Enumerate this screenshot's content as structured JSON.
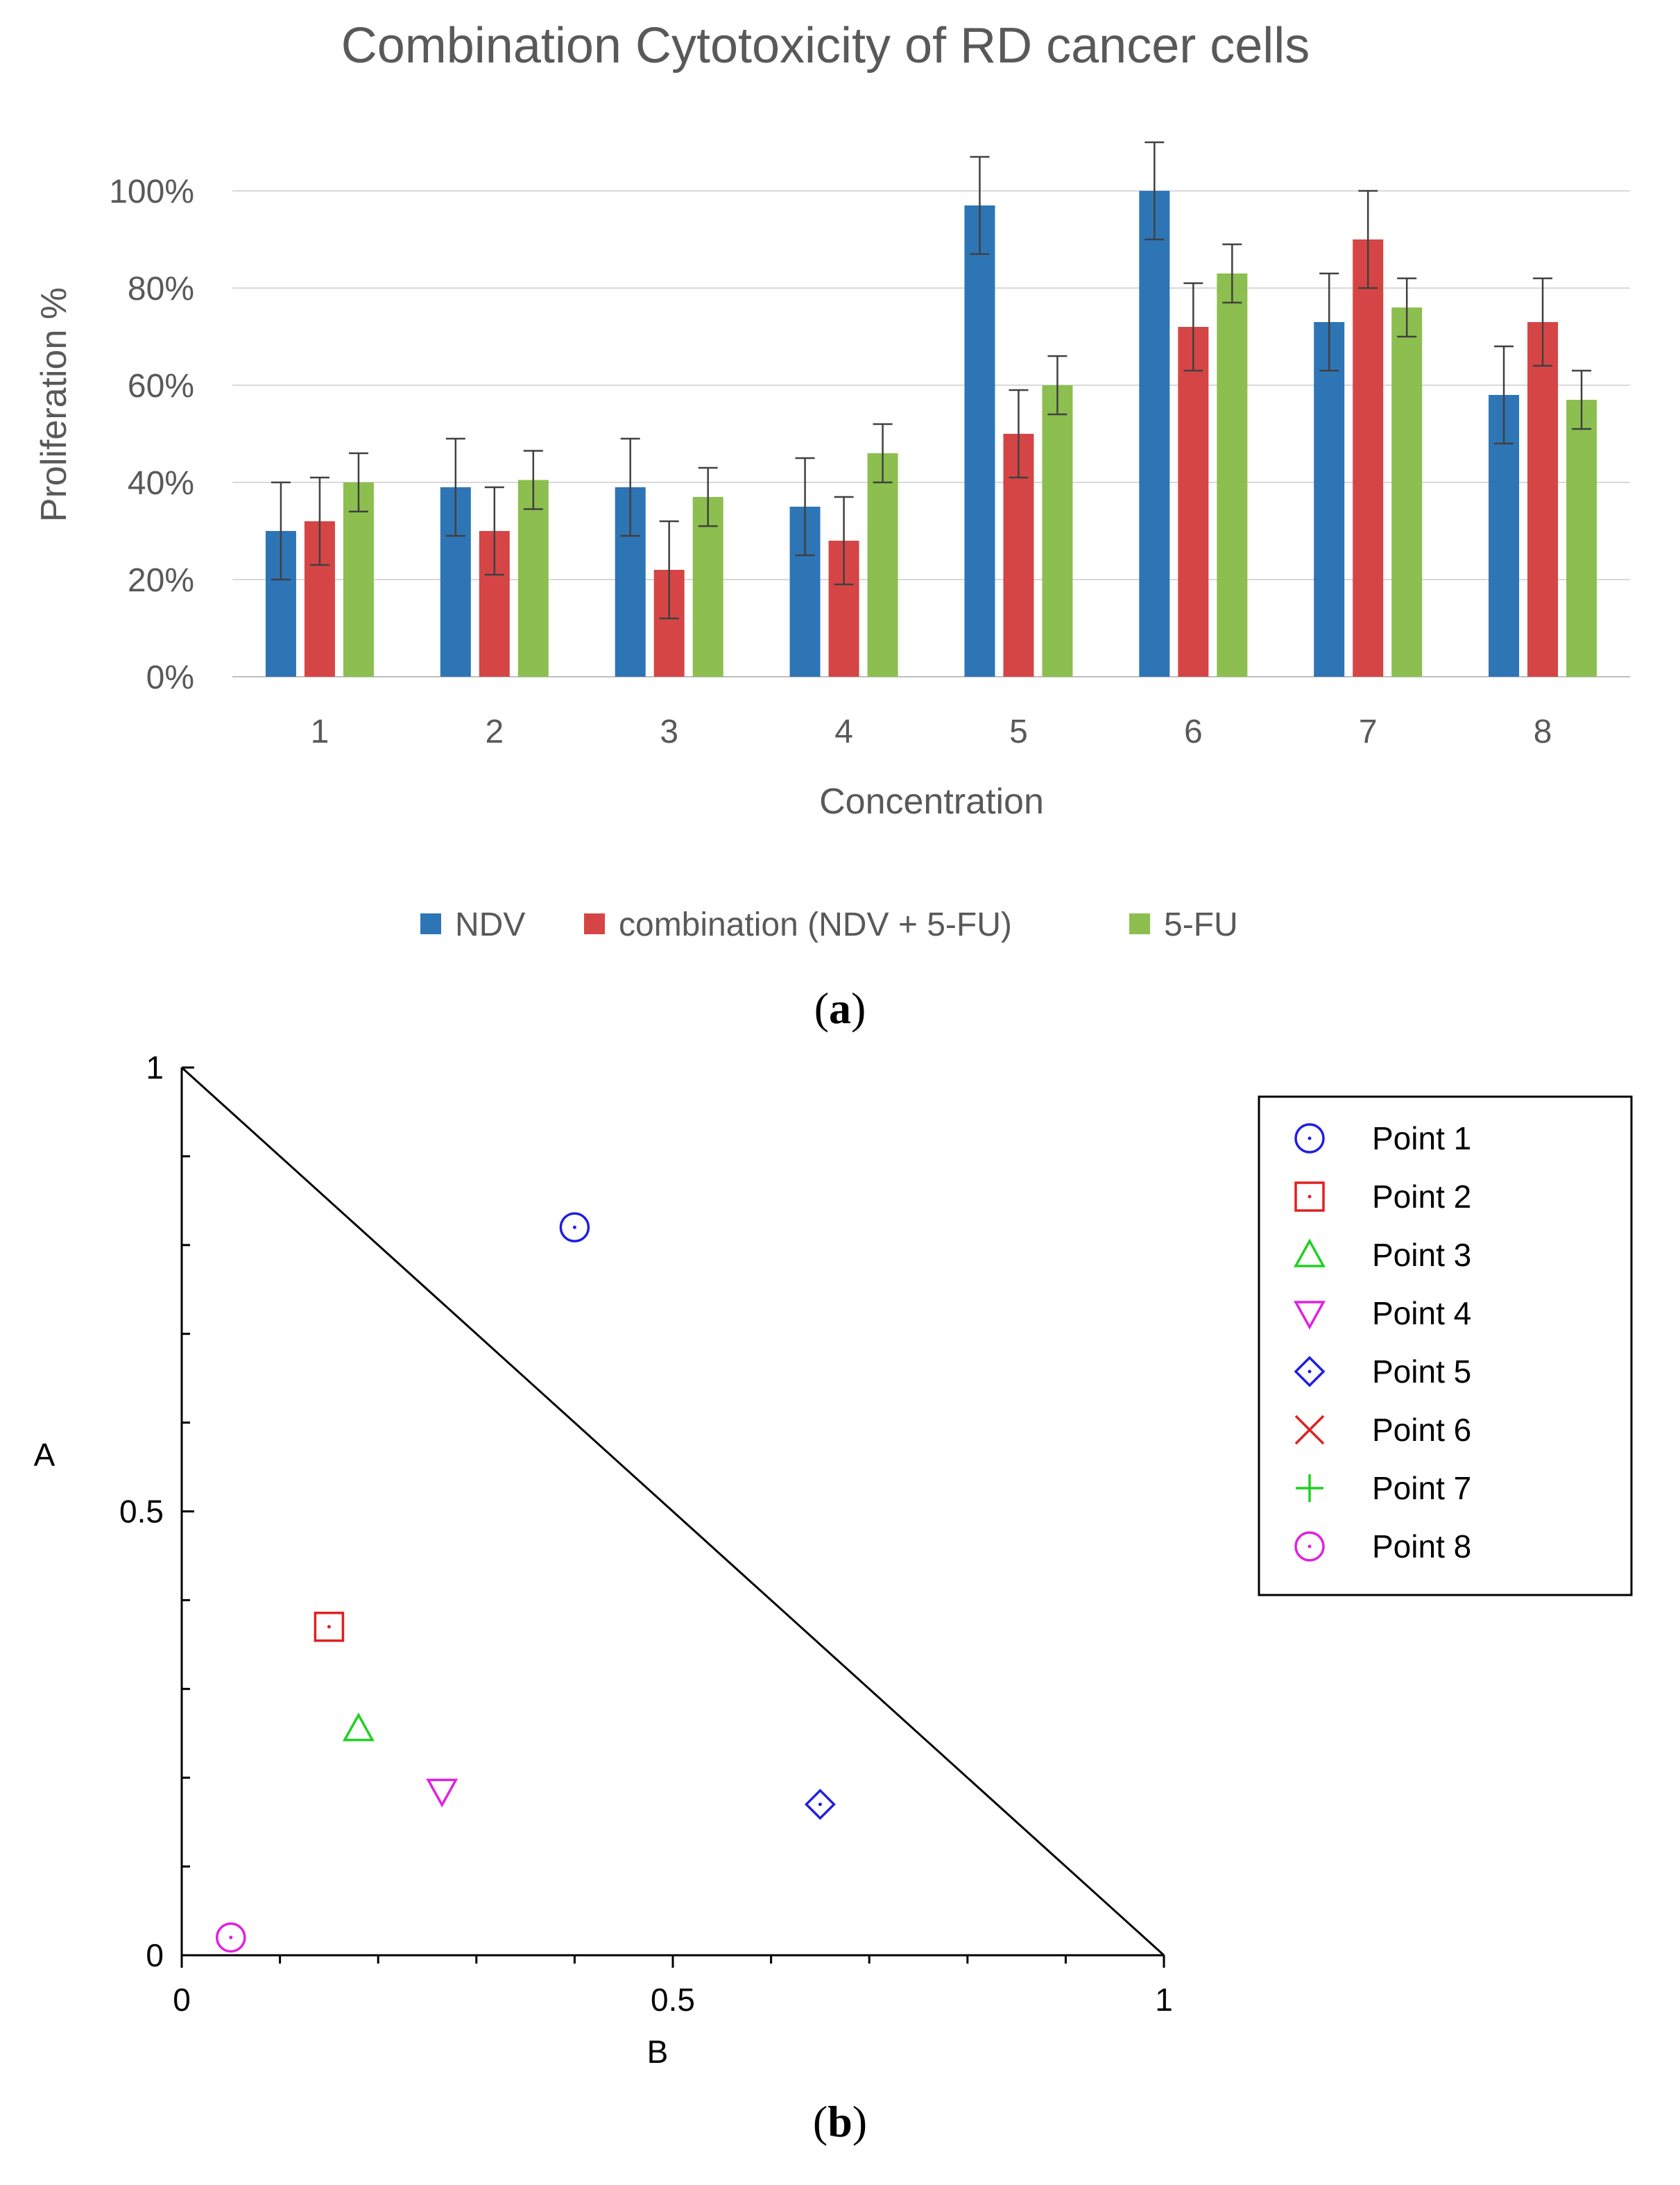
{
  "figure": {
    "caption_a": {
      "open": "(",
      "letter": "a",
      "close": ")"
    },
    "caption_b": {
      "open": "(",
      "letter": "b",
      "close": ")"
    }
  },
  "chart_data": [
    {
      "type": "bar",
      "title": "Combination Cytotoxicity of RD cancer cells",
      "xlabel": "Concentration",
      "ylabel": "Proliferation %",
      "categories": [
        "1",
        "2",
        "3",
        "4",
        "5",
        "6",
        "7",
        "8"
      ],
      "ylim": [
        0,
        100
      ],
      "yticks": [
        0,
        20,
        40,
        60,
        80,
        100
      ],
      "yticklabels": [
        "0%",
        "20%",
        "40%",
        "60%",
        "80%",
        "100%"
      ],
      "grid": true,
      "legend_position": "bottom",
      "colors": [
        "#2E75B6",
        "#D64545",
        "#8CBF4F"
      ],
      "series": [
        {
          "name": "NDV",
          "values": [
            30,
            39,
            39,
            35,
            97,
            100,
            73,
            58
          ],
          "errors": [
            10,
            10,
            10,
            10,
            10,
            10,
            10,
            10
          ]
        },
        {
          "name": "combination (NDV + 5-FU)",
          "values": [
            32,
            30,
            22,
            28,
            50,
            72,
            90,
            73
          ],
          "errors": [
            9,
            9,
            10,
            9,
            9,
            9,
            10,
            9
          ]
        },
        {
          "name": "5-FU",
          "values": [
            40,
            40.5,
            37,
            46,
            60,
            83,
            76,
            57
          ],
          "errors": [
            6,
            6,
            6,
            6,
            6,
            6,
            6,
            6
          ]
        }
      ]
    },
    {
      "type": "scatter",
      "xlabel": "B",
      "ylabel": "A",
      "xlim": [
        0,
        1
      ],
      "ylim": [
        0,
        1
      ],
      "xticklabels": [
        "0",
        "0.5",
        "1"
      ],
      "yticklabels": [
        "0",
        "0.5",
        "1"
      ],
      "line": {
        "from": [
          0,
          1
        ],
        "to": [
          1,
          0
        ]
      },
      "legend_position": "top-right",
      "series": [
        {
          "name": "Point 1",
          "marker": "circle-dot",
          "color": "#1F1FE0",
          "x": 0.4,
          "y": 0.82
        },
        {
          "name": "Point 2",
          "marker": "square-dot",
          "color": "#E02020",
          "x": 0.15,
          "y": 0.37
        },
        {
          "name": "Point 3",
          "marker": "triangle-up",
          "color": "#20D020",
          "x": 0.18,
          "y": 0.255
        },
        {
          "name": "Point 4",
          "marker": "triangle-down",
          "color": "#E020E0",
          "x": 0.265,
          "y": 0.185
        },
        {
          "name": "Point 5",
          "marker": "diamond-dot",
          "color": "#1F1FE0",
          "x": 0.65,
          "y": 0.17
        },
        {
          "name": "Point 6",
          "marker": "x",
          "color": "#E02020",
          "x": null,
          "y": null
        },
        {
          "name": "Point 7",
          "marker": "plus",
          "color": "#20D020",
          "x": null,
          "y": null
        },
        {
          "name": "Point 8",
          "marker": "circle-dot",
          "color": "#E020E0",
          "x": 0.05,
          "y": 0.02
        }
      ]
    }
  ]
}
